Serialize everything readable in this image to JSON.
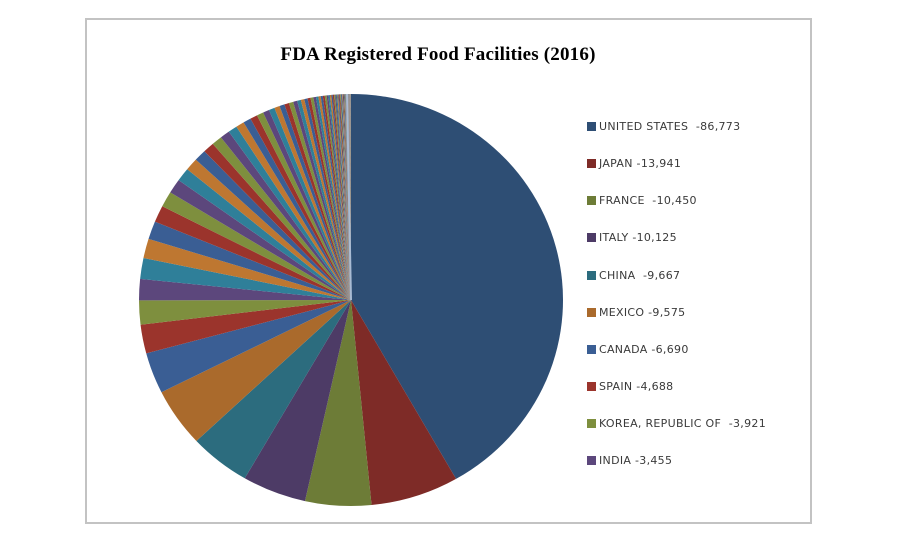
{
  "title": "FDA Registered Food Facilities (2016)",
  "chart_data": {
    "type": "pie",
    "title": "FDA Registered Food Facilities (2016)",
    "start_angle_deg": 0,
    "direction": "clockwise",
    "legend_position": "right",
    "series": [
      {
        "label": "UNITED STATES",
        "value": 86773,
        "value_text": "-86,773",
        "legend_text": "UNITED STATES  -86,773"
      },
      {
        "label": "JAPAN",
        "value": 13941,
        "value_text": "-13,941",
        "legend_text": "JAPAN -13,941"
      },
      {
        "label": "FRANCE",
        "value": 10450,
        "value_text": "-10,450",
        "legend_text": "FRANCE  -10,450"
      },
      {
        "label": "ITALY",
        "value": 10125,
        "value_text": "-10,125",
        "legend_text": "ITALY -10,125"
      },
      {
        "label": "CHINA",
        "value": 9667,
        "value_text": "-9,667",
        "legend_text": "CHINA  -9,667"
      },
      {
        "label": "MEXICO",
        "value": 9575,
        "value_text": "-9,575",
        "legend_text": "MEXICO -9,575"
      },
      {
        "label": "CANADA",
        "value": 6690,
        "value_text": "-6,690",
        "legend_text": "CANADA -6,690"
      },
      {
        "label": "SPAIN",
        "value": 4688,
        "value_text": "-4,688",
        "legend_text": "SPAIN -4,688"
      },
      {
        "label": "KOREA, REPUBLIC OF",
        "value": 3921,
        "value_text": "-3,921",
        "legend_text": "KOREA, REPUBLIC OF  -3,921"
      },
      {
        "label": "INDIA",
        "value": 3455,
        "value_text": "-3,455",
        "legend_text": "INDIA -3,455"
      }
    ],
    "unlabeled_small_slices": {
      "count": 120,
      "first_value": 3400,
      "decay_ratio": 0.93,
      "description": "long tail of additional unlabeled countries; individual values not readable in image"
    }
  },
  "palette": {
    "primary": [
      "#2E4E74",
      "#7E2B27",
      "#6D7C37",
      "#4D3B66",
      "#2C6C7E",
      "#AA6A2C"
    ],
    "secondary": [
      "#3A5E94",
      "#9B342C",
      "#7E8F3E",
      "#5C477C",
      "#2F7F99",
      "#BE7731"
    ],
    "start_line": "#A9BBD3",
    "frame_border": "#C3C3C3",
    "legend_text": "#3A3A3A",
    "title_text": "#000000",
    "background": "#FFFFFF"
  }
}
